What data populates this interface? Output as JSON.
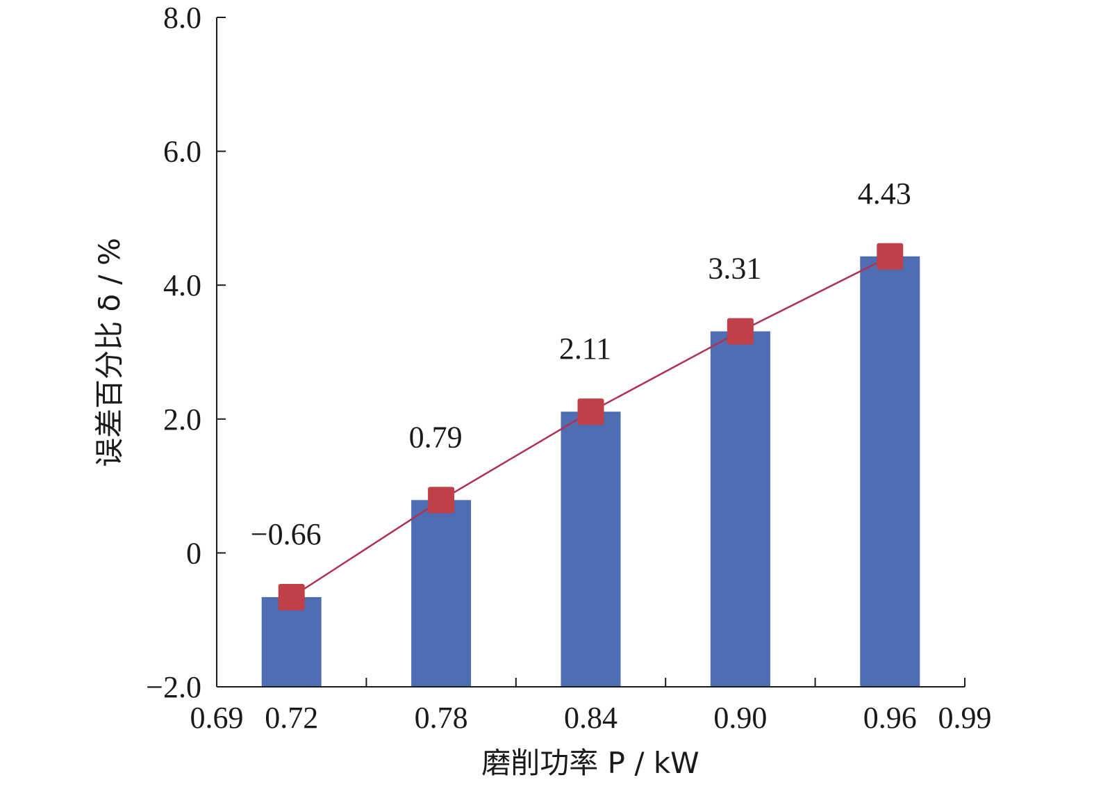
{
  "chart_data": {
    "type": "bar",
    "categories": [
      "0.72",
      "0.78",
      "0.84",
      "0.90",
      "0.96"
    ],
    "values": [
      -0.66,
      0.79,
      2.11,
      3.31,
      4.43
    ],
    "data_labels": [
      "−0.66",
      "0.79",
      "2.11",
      "3.31",
      "4.43"
    ],
    "overlay_line": {
      "type": "line",
      "marker": "square",
      "values": [
        -0.66,
        0.79,
        2.11,
        3.31,
        4.43
      ]
    },
    "xlabel": "磨削功率 P / kW",
    "ylabel": "误差百分比 δ / %",
    "x_ticks": [
      "0.69",
      "0.72",
      "0.78",
      "0.84",
      "0.90",
      "0.96",
      "0.99"
    ],
    "x_range": [
      0.69,
      0.99
    ],
    "y_ticks": [
      "−2.0",
      "0",
      "2.0",
      "4.0",
      "6.0",
      "8.0"
    ],
    "y_tick_values": [
      -2,
      0,
      2,
      4,
      6,
      8
    ],
    "ylim": [
      -2.0,
      8.0
    ],
    "grid": false,
    "legend": "none",
    "colors": {
      "bar": "#4f6db2",
      "marker": "#c0404a",
      "line": "#b03050"
    }
  }
}
